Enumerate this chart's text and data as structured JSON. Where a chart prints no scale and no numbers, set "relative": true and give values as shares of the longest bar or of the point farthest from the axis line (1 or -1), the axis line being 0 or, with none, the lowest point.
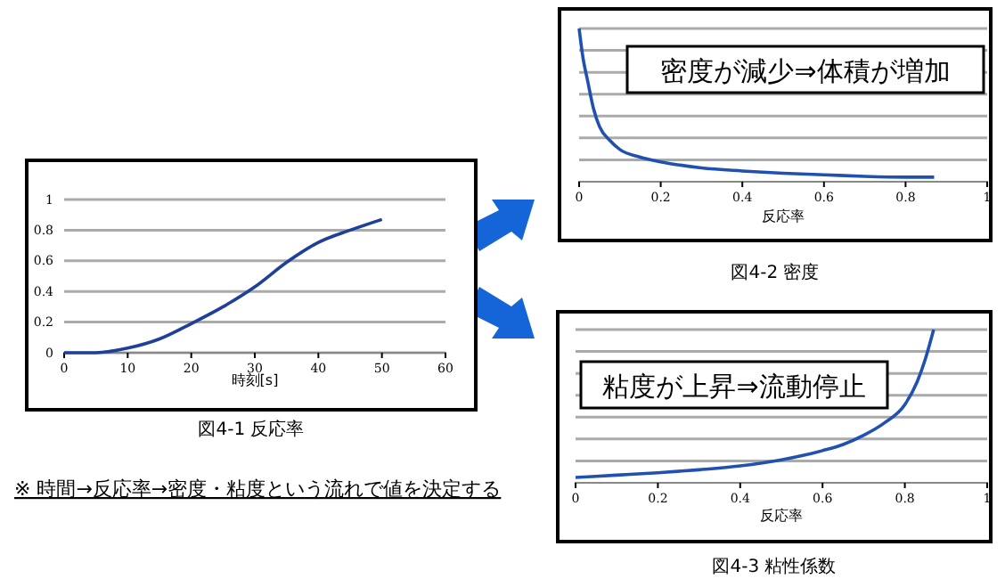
{
  "chart_data": [
    {
      "type": "line",
      "title": "図4-1 反応率",
      "xlabel": "時刻[s]",
      "x": [
        0,
        5,
        10,
        15,
        20,
        25,
        30,
        35,
        40,
        45,
        50
      ],
      "series": [
        {
          "color": "#1f3f99",
          "values": [
            0,
            0,
            0.03,
            0.09,
            0.19,
            0.3,
            0.43,
            0.59,
            0.72,
            0.8,
            0.87
          ]
        }
      ],
      "xlim": [
        0,
        60
      ],
      "xticks": [
        0,
        10,
        20,
        30,
        40,
        50,
        60
      ],
      "ylim": [
        0,
        1
      ],
      "yticks": [
        0,
        0.2,
        0.4,
        0.6,
        0.8,
        1
      ],
      "grid": "y",
      "annotations": [
        "※ 時間→反応率→密度・粘度という流れで値を決定する"
      ]
    },
    {
      "type": "line",
      "title": "図4-2 密度",
      "xlabel": "反応率",
      "relative": true,
      "x": [
        0,
        0.01,
        0.02,
        0.035,
        0.05,
        0.075,
        0.1,
        0.15,
        0.2,
        0.3,
        0.4,
        0.5,
        0.6,
        0.7,
        0.8,
        0.87
      ],
      "series": [
        {
          "color": "#2050b0",
          "values": [
            1,
            0.8,
            0.67,
            0.48,
            0.36,
            0.27,
            0.21,
            0.16,
            0.13,
            0.09,
            0.07,
            0.055,
            0.045,
            0.035,
            0.03,
            0.03
          ]
        }
      ],
      "xlim": [
        0,
        1
      ],
      "xticks": [
        0,
        0.2,
        0.4,
        0.6,
        0.8,
        1
      ],
      "grid": "y",
      "annotations": [
        "密度が減少⇒体積が増加"
      ]
    },
    {
      "type": "line",
      "title": "図4-3 粘性係数",
      "xlabel": "反応率",
      "relative": true,
      "x": [
        0,
        0.1,
        0.2,
        0.3,
        0.4,
        0.5,
        0.6,
        0.65,
        0.7,
        0.75,
        0.8,
        0.83,
        0.85,
        0.87
      ],
      "series": [
        {
          "color": "#2050b0",
          "values": [
            0.035,
            0.05,
            0.065,
            0.085,
            0.11,
            0.15,
            0.21,
            0.25,
            0.31,
            0.39,
            0.51,
            0.66,
            0.81,
            1
          ]
        }
      ],
      "xlim": [
        0,
        1
      ],
      "xticks": [
        0,
        0.2,
        0.4,
        0.6,
        0.8,
        1
      ],
      "grid": "y",
      "annotations": [
        "粘度が上昇⇒流動停止"
      ]
    }
  ]
}
